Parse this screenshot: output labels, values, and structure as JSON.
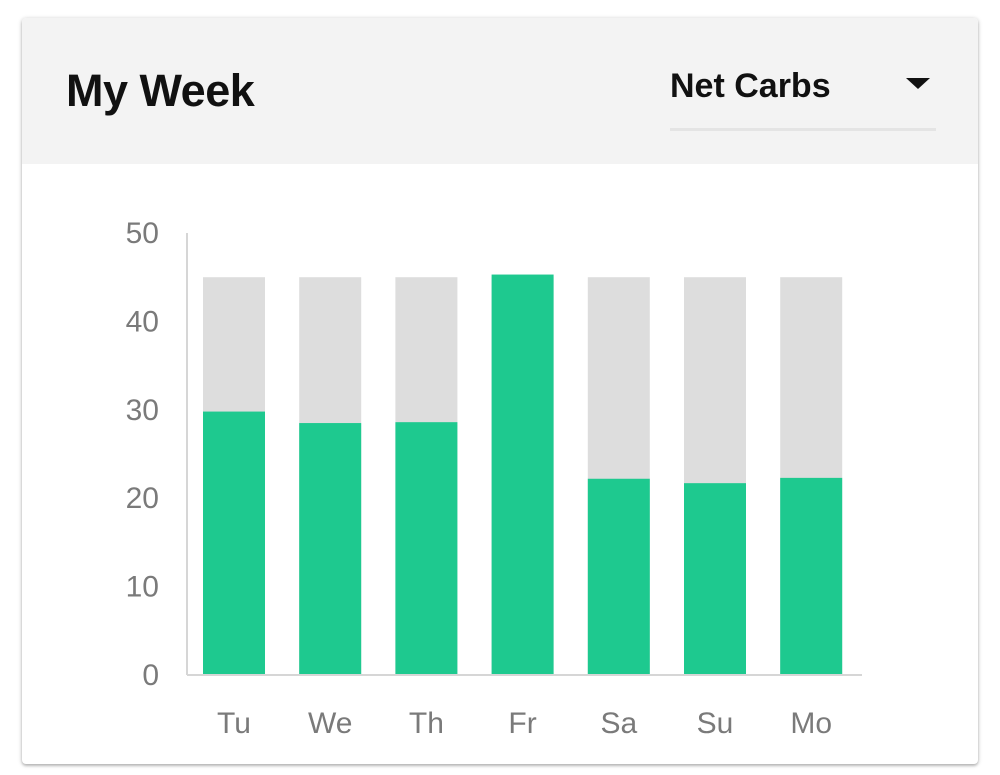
{
  "header": {
    "title": "My Week",
    "metric_selector": {
      "selected": "Net Carbs"
    }
  },
  "colors": {
    "header_background": "#f3f3f3",
    "consumed": "#1ec98f",
    "goal": "#dddddd",
    "axis": "#d6d6d6",
    "tick_text": "#7a7a7a"
  },
  "chart_data": {
    "type": "bar",
    "categories": [
      "Tu",
      "We",
      "Th",
      "Fr",
      "Sa",
      "Su",
      "Mo"
    ],
    "series": [
      {
        "values": [
          45,
          45,
          45,
          45,
          45,
          45,
          45
        ]
      },
      {
        "values": [
          29.8,
          28.5,
          28.6,
          45.3,
          22.2,
          21.7,
          22.3
        ]
      }
    ],
    "ylim": [
      0,
      50
    ],
    "yticks": [
      "0",
      "10",
      "20",
      "30",
      "40",
      "50"
    ],
    "grid": false,
    "stacking": "overlay"
  }
}
